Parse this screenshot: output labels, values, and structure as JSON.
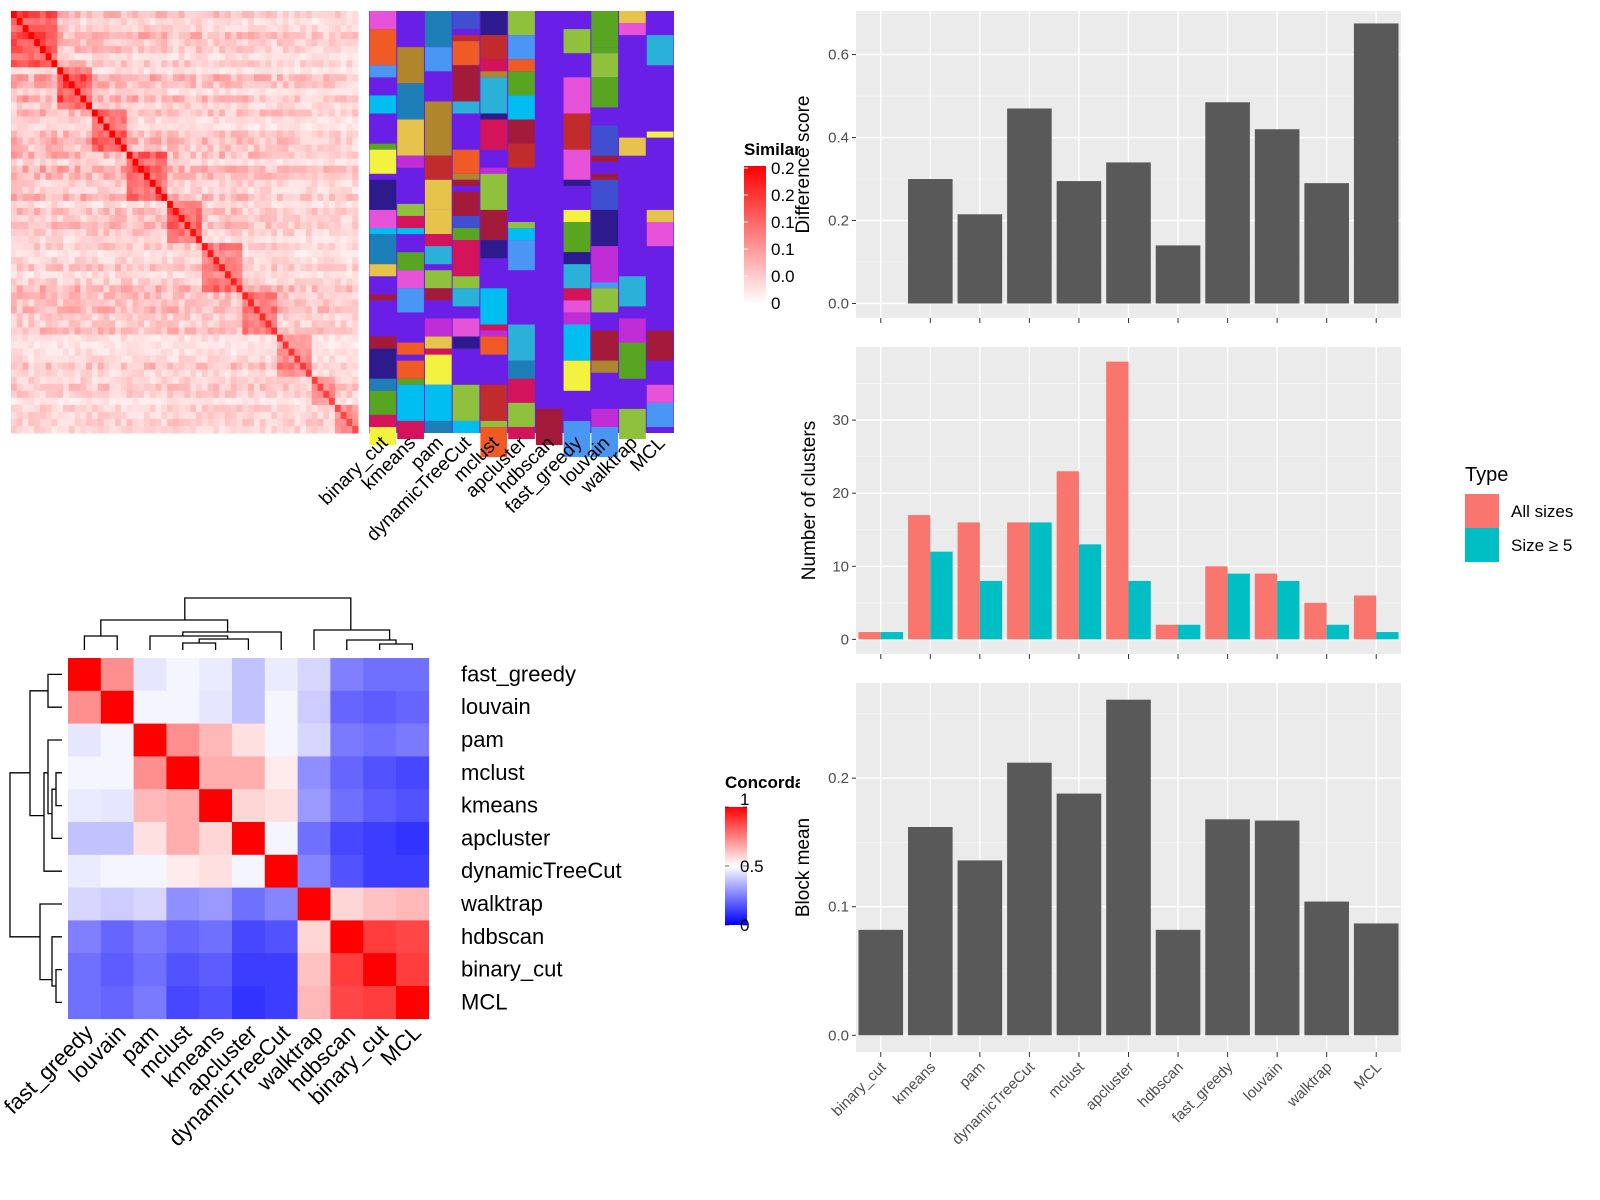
{
  "methods_heatmap_cols": [
    "binary_cut",
    "kmeans",
    "pam",
    "dynamicTreeCut",
    "mclust",
    "apcluster",
    "hdbscan",
    "fast_greedy",
    "louvain",
    "walktrap",
    "MCL"
  ],
  "similarity_legend": {
    "title": "Similarity",
    "ticks": [
      "0.2",
      "0.2",
      "0.1",
      "0.1",
      "0.0",
      "0"
    ]
  },
  "concordance_legend": {
    "title": "Concordance",
    "ticks": [
      "1",
      "0.5",
      "0"
    ]
  },
  "concordance_order": [
    "fast_greedy",
    "louvain",
    "pam",
    "mclust",
    "kmeans",
    "apcluster",
    "dynamicTreeCut",
    "walktrap",
    "hdbscan",
    "binary_cut",
    "MCL"
  ],
  "concordance_matrix": [
    [
      1.0,
      0.72,
      0.45,
      0.48,
      0.46,
      0.38,
      0.46,
      0.42,
      0.25,
      0.22,
      0.22
    ],
    [
      0.72,
      1.0,
      0.48,
      0.48,
      0.45,
      0.38,
      0.48,
      0.4,
      0.2,
      0.18,
      0.2
    ],
    [
      0.45,
      0.48,
      1.0,
      0.72,
      0.64,
      0.56,
      0.48,
      0.42,
      0.24,
      0.22,
      0.24
    ],
    [
      0.48,
      0.48,
      0.72,
      1.0,
      0.66,
      0.66,
      0.54,
      0.28,
      0.2,
      0.16,
      0.14
    ],
    [
      0.46,
      0.45,
      0.64,
      0.66,
      1.0,
      0.58,
      0.56,
      0.3,
      0.22,
      0.18,
      0.16
    ],
    [
      0.38,
      0.38,
      0.56,
      0.66,
      0.58,
      1.0,
      0.48,
      0.22,
      0.14,
      0.12,
      0.1
    ],
    [
      0.46,
      0.48,
      0.48,
      0.54,
      0.56,
      0.48,
      1.0,
      0.26,
      0.16,
      0.12,
      0.12
    ],
    [
      0.42,
      0.4,
      0.42,
      0.28,
      0.3,
      0.22,
      0.26,
      1.0,
      0.58,
      0.62,
      0.64
    ],
    [
      0.25,
      0.2,
      0.24,
      0.2,
      0.22,
      0.14,
      0.16,
      0.58,
      1.0,
      0.88,
      0.86
    ],
    [
      0.22,
      0.18,
      0.22,
      0.16,
      0.18,
      0.12,
      0.12,
      0.62,
      0.88,
      1.0,
      0.88
    ],
    [
      0.22,
      0.2,
      0.24,
      0.14,
      0.16,
      0.1,
      0.12,
      0.64,
      0.86,
      0.88,
      1.0
    ]
  ],
  "chart_data": [
    {
      "type": "bar",
      "categories": [
        "binary_cut",
        "kmeans",
        "pam",
        "dynamicTreeCut",
        "mclust",
        "apcluster",
        "hdbscan",
        "fast_greedy",
        "louvain",
        "walktrap",
        "MCL"
      ],
      "values": [
        0.0,
        0.3,
        0.215,
        0.47,
        0.295,
        0.34,
        0.14,
        0.485,
        0.42,
        0.29,
        0.675
      ],
      "ylabel": "Difference score",
      "ylim": [
        -0.035,
        0.705
      ],
      "yticks": [
        "0.0",
        "0.2",
        "0.4",
        "0.6"
      ]
    },
    {
      "type": "bar",
      "categories": [
        "binary_cut",
        "kmeans",
        "pam",
        "dynamicTreeCut",
        "mclust",
        "apcluster",
        "hdbscan",
        "fast_greedy",
        "louvain",
        "walktrap",
        "MCL"
      ],
      "series": [
        {
          "name": "All sizes",
          "color": "#F8766D",
          "values": [
            1,
            17,
            16,
            16,
            23,
            38,
            2,
            10,
            9,
            5,
            6
          ]
        },
        {
          "name": "Size ≥ 5",
          "color": "#00BFC4",
          "values": [
            1,
            12,
            8,
            16,
            13,
            8,
            2,
            9,
            8,
            2,
            1
          ]
        }
      ],
      "ylabel": "Number of clusters",
      "ylim": [
        -2,
        40
      ],
      "yticks": [
        "0",
        "10",
        "20",
        "30"
      ],
      "legend_title": "Type",
      "legend_position": "right"
    },
    {
      "type": "bar",
      "categories": [
        "binary_cut",
        "kmeans",
        "pam",
        "dynamicTreeCut",
        "mclust",
        "apcluster",
        "hdbscan",
        "fast_greedy",
        "louvain",
        "walktrap",
        "MCL"
      ],
      "values": [
        0.082,
        0.162,
        0.136,
        0.212,
        0.188,
        0.261,
        0.082,
        0.168,
        0.167,
        0.104,
        0.087
      ],
      "ylabel": "Block mean",
      "ylim": [
        -0.013,
        0.274
      ],
      "yticks": [
        "0.0",
        "0.1",
        "0.2"
      ]
    }
  ]
}
